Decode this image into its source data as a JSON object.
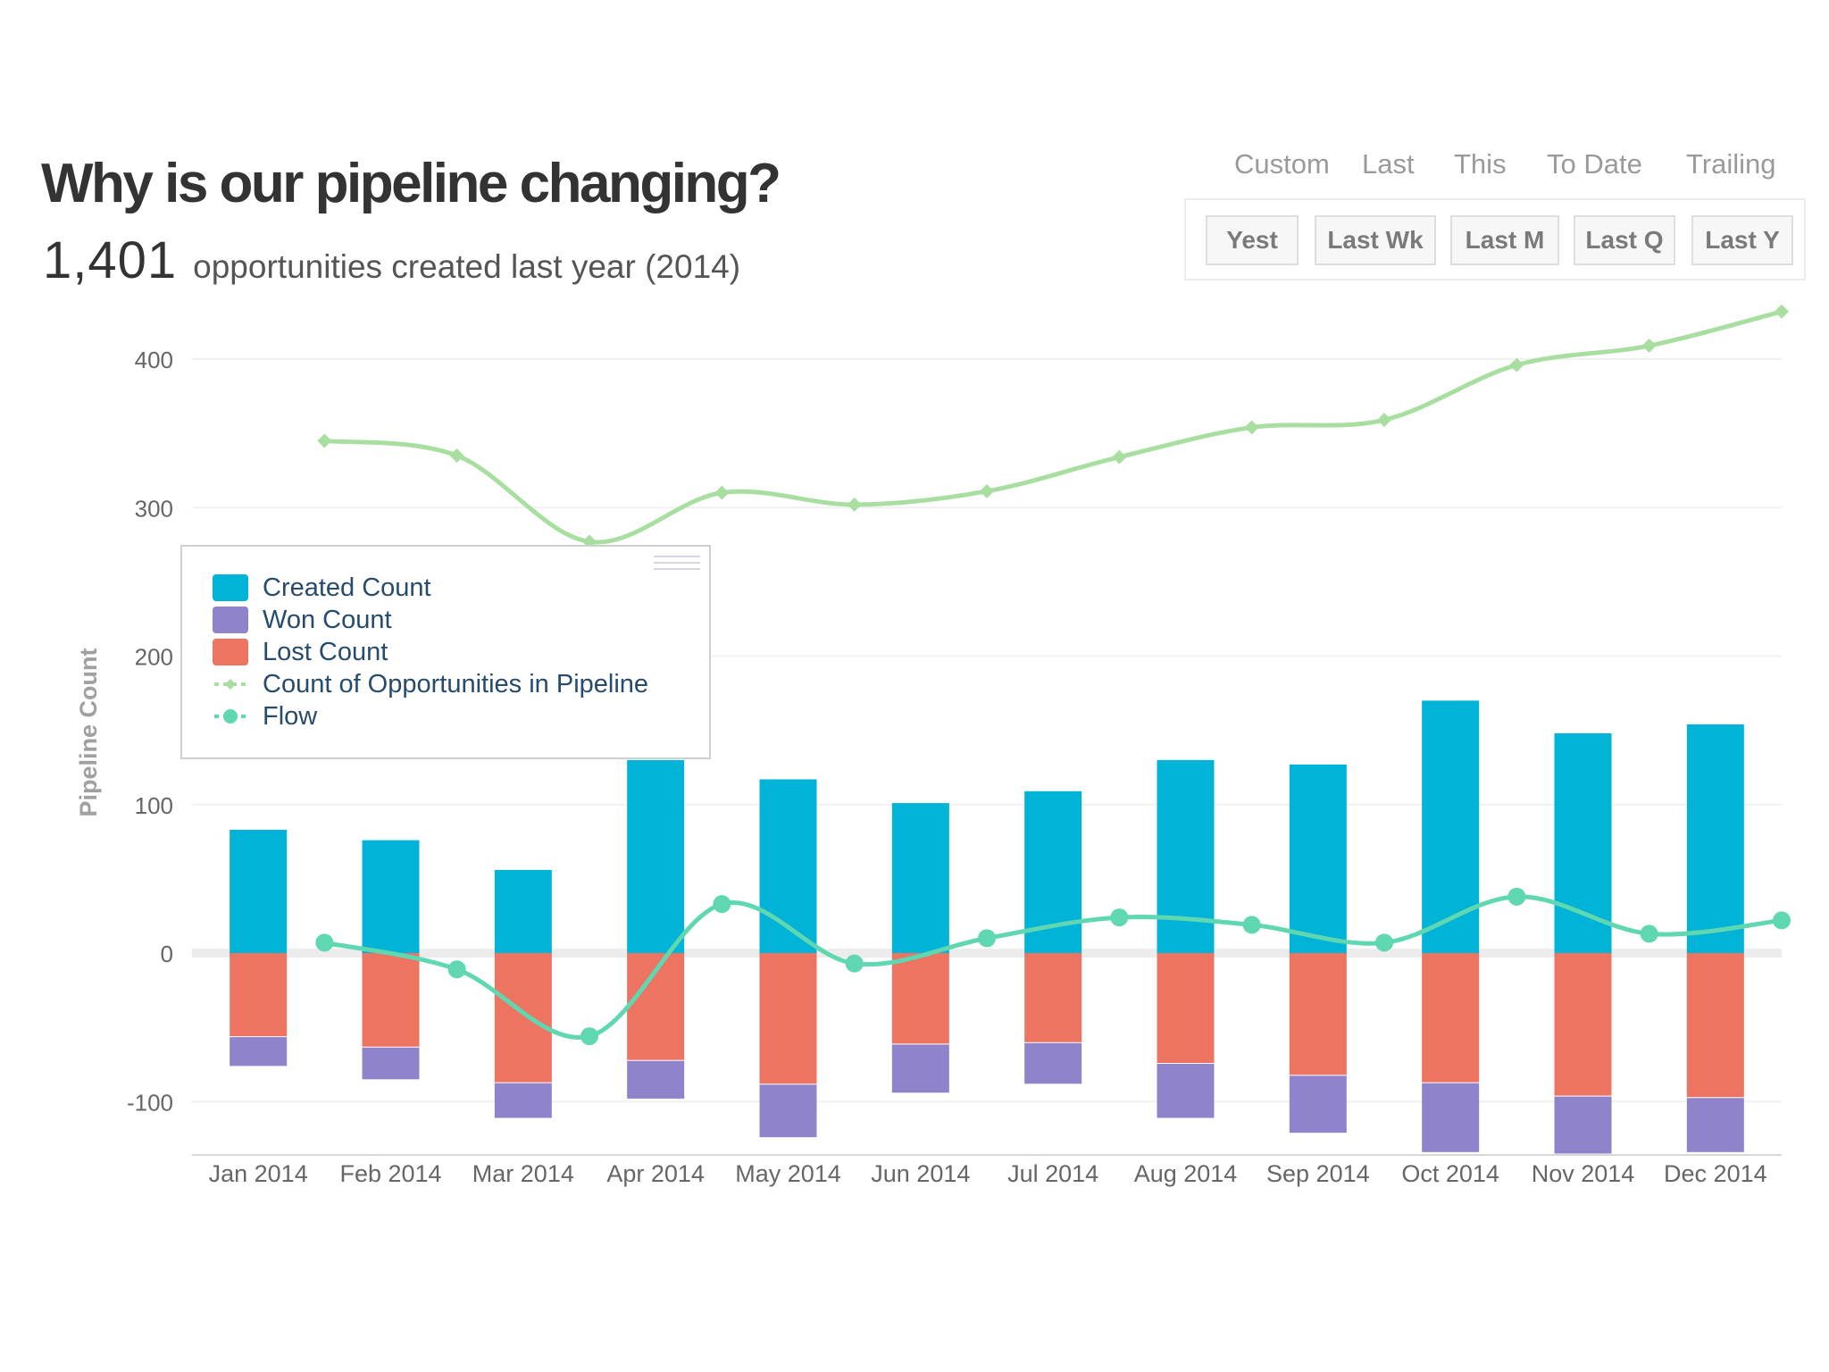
{
  "header": {
    "title": "Why is our pipeline changing?",
    "count": "1,401",
    "subtitle_text": "opportunities created last year (2014)"
  },
  "period_tabs": [
    {
      "label": "Custom",
      "active": false
    },
    {
      "label": "Last",
      "active": true
    },
    {
      "label": "This",
      "active": false
    },
    {
      "label": "To Date",
      "active": false
    },
    {
      "label": "Trailing",
      "active": false
    }
  ],
  "range_buttons": [
    {
      "label": "Yest",
      "active": false
    },
    {
      "label": "Last Wk",
      "active": false
    },
    {
      "label": "Last M",
      "active": false
    },
    {
      "label": "Last Q",
      "active": false
    },
    {
      "label": "Last Y",
      "active": true
    }
  ],
  "colors": {
    "created": "#00b3d7",
    "won": "#8f84cc",
    "lost": "#ec7460",
    "pipeline": "#a8dfa0",
    "flow": "#5fd7b1",
    "grid": "#f1f1f1",
    "zero_line": "#ececec",
    "axis_text": "#666666",
    "axis_title": "#a0a0a0"
  },
  "chart_data": {
    "type": "bar",
    "title": "",
    "xlabel": "",
    "ylabel": "Pipeline Count",
    "ylim": [
      -134,
      400
    ],
    "yticks": [
      -100,
      0,
      100,
      200,
      300,
      400
    ],
    "categories": [
      "Jan 2014",
      "Feb 2014",
      "Mar 2014",
      "Apr 2014",
      "May 2014",
      "Jun 2014",
      "Jul 2014",
      "Aug 2014",
      "Sep 2014",
      "Oct 2014",
      "Nov 2014",
      "Dec 2014"
    ],
    "series": [
      {
        "name": "Created Count",
        "type": "column",
        "values": [
          83,
          76,
          56,
          130,
          117,
          101,
          109,
          130,
          127,
          170,
          148,
          154
        ]
      },
      {
        "name": "Won Count",
        "type": "column",
        "values": [
          -20,
          -22,
          -24,
          -26,
          -36,
          -33,
          -28,
          -37,
          -39,
          -47,
          -39,
          -37
        ]
      },
      {
        "name": "Lost Count",
        "type": "column",
        "values": [
          -56,
          -63,
          -87,
          -72,
          -88,
          -61,
          -60,
          -74,
          -82,
          -87,
          -96,
          -97
        ]
      },
      {
        "name": "Count of Opportunities in Pipeline",
        "type": "spline",
        "values": [
          345,
          335,
          277,
          310,
          302,
          311,
          334,
          354,
          359,
          396,
          409,
          432
        ]
      },
      {
        "name": "Flow",
        "type": "spline",
        "values": [
          7,
          -11,
          -56,
          33,
          -7,
          10,
          24,
          19,
          7,
          38,
          13,
          22
        ]
      }
    ],
    "legend": [
      "Created Count",
      "Won Count",
      "Lost Count",
      "Count of Opportunities in Pipeline",
      "Flow"
    ],
    "legend_position": "top-left",
    "grid": true
  }
}
